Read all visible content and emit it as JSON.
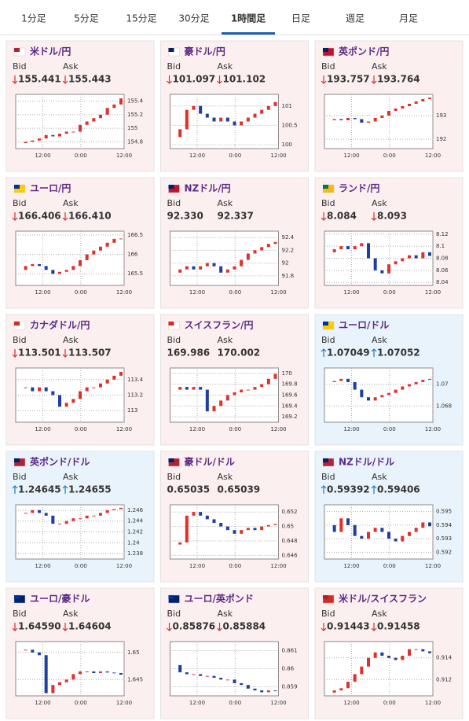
{
  "tabs": [
    "1分足",
    "5分足",
    "15分足",
    "30分足",
    "1時間足",
    "日足",
    "週足",
    "月足"
  ],
  "active_tab": 4,
  "labels": {
    "bid": "Bid",
    "ask": "Ask"
  },
  "cards": [
    {
      "title": "米ドル/円",
      "bid": "155.441",
      "ask": "155.443",
      "bid_dir": "down",
      "ask_dir": "down",
      "background": "#fcefef",
      "ylim": [
        154.7,
        155.5
      ],
      "yticks": [
        155.4,
        155.2,
        155,
        154.8
      ],
      "xticks": [
        "12:00",
        "0:00",
        "12:00"
      ],
      "closes": [
        154.78,
        154.8,
        154.82,
        154.85,
        154.9,
        154.88,
        154.92,
        154.95,
        154.95,
        155.05,
        155.1,
        155.15,
        155.2,
        155.3,
        155.35,
        155.44
      ]
    },
    {
      "title": "豪ドル/円",
      "bid": "101.097",
      "ask": "101.102",
      "bid_dir": "down",
      "ask_dir": "down",
      "background": "#fcefef",
      "ylim": [
        99.9,
        101.3
      ],
      "yticks": [
        101,
        100.5,
        100
      ],
      "xticks": [
        "12:00",
        "0:00",
        "12:00"
      ],
      "closes": [
        100.2,
        100.4,
        100.9,
        101.0,
        100.8,
        100.7,
        100.6,
        100.7,
        100.6,
        100.5,
        100.6,
        100.7,
        100.8,
        100.9,
        101.0,
        101.1
      ]
    },
    {
      "title": "英ポンド/円",
      "bid": "193.757",
      "ask": "193.764",
      "bid_dir": "down",
      "ask_dir": "down",
      "background": "#fcefef",
      "ylim": [
        191.6,
        193.9
      ],
      "yticks": [
        193,
        192
      ],
      "xticks": [
        "12:00",
        "0:00",
        "12:00"
      ],
      "closes": [
        192.8,
        192.85,
        192.8,
        192.9,
        192.85,
        192.7,
        192.75,
        192.9,
        193.0,
        193.2,
        193.3,
        193.4,
        193.5,
        193.6,
        193.7,
        193.76
      ]
    },
    {
      "title": "ユーロ/円",
      "bid": "166.406",
      "ask": "166.410",
      "bid_dir": "down",
      "ask_dir": "down",
      "background": "#fcefef",
      "ylim": [
        165.2,
        166.6
      ],
      "yticks": [
        166.5,
        166,
        165.5
      ],
      "xticks": [
        "12:00",
        "0:00",
        "12:00"
      ],
      "closes": [
        165.6,
        165.7,
        165.75,
        165.7,
        165.6,
        165.5,
        165.55,
        165.6,
        165.7,
        165.85,
        166.0,
        166.1,
        166.2,
        166.3,
        166.4,
        166.41
      ]
    },
    {
      "title": "NZドル/円",
      "bid": "92.330",
      "ask": "92.337",
      "background": "#fcefef",
      "ylim": [
        91.65,
        92.5
      ],
      "yticks": [
        92.4,
        92.2,
        92,
        91.8
      ],
      "xticks": [
        "12:00",
        "0:00",
        "12:00"
      ],
      "closes": [
        91.85,
        91.9,
        91.95,
        91.9,
        91.95,
        92.0,
        91.95,
        91.85,
        91.9,
        91.95,
        92.05,
        92.15,
        92.2,
        92.25,
        92.3,
        92.33
      ]
    },
    {
      "title": "ランド/円",
      "bid": "8.084",
      "ask": "8.093",
      "bid_dir": "down",
      "ask_dir": "down",
      "background": "#fcefef",
      "ylim": [
        8.035,
        8.125
      ],
      "yticks": [
        8.12,
        8.1,
        8.08,
        8.06,
        8.04
      ],
      "xticks": [
        "12:00",
        "0:00",
        "12:00"
      ],
      "closes": [
        8.09,
        8.095,
        8.1,
        8.095,
        8.1,
        8.105,
        8.08,
        8.06,
        8.055,
        8.07,
        8.075,
        8.08,
        8.085,
        8.08,
        8.09,
        8.084
      ]
    },
    {
      "title": "カナダドル/円",
      "bid": "113.501",
      "ask": "113.507",
      "bid_dir": "down",
      "ask_dir": "down",
      "background": "#fcefef",
      "ylim": [
        112.85,
        113.55
      ],
      "yticks": [
        113.4,
        113.2,
        113
      ],
      "xticks": [
        "12:00",
        "0:00",
        "12:00"
      ],
      "closes": [
        113.3,
        113.3,
        113.25,
        113.3,
        113.25,
        113.2,
        113.05,
        113.1,
        113.15,
        113.25,
        113.3,
        113.3,
        113.35,
        113.4,
        113.45,
        113.5
      ]
    },
    {
      "title": "スイスフラン/円",
      "bid": "169.986",
      "ask": "170.002",
      "background": "#fcefef",
      "ylim": [
        169.1,
        170.1
      ],
      "yticks": [
        170,
        169.8,
        169.6,
        169.4,
        169.2
      ],
      "xticks": [
        "12:00",
        "0:00",
        "12:00"
      ],
      "closes": [
        169.7,
        169.75,
        169.7,
        169.75,
        169.7,
        169.3,
        169.4,
        169.5,
        169.6,
        169.65,
        169.7,
        169.7,
        169.75,
        169.8,
        169.9,
        169.99
      ]
    },
    {
      "title": "ユーロ/ドル",
      "bid": "1.07049",
      "ask": "1.07052",
      "bid_dir": "up",
      "ask_dir": "up",
      "background": "#e9f3fb",
      "ylim": [
        1.0665,
        1.0715
      ],
      "yticks": [
        1.07,
        1.068
      ],
      "xticks": [
        "12:00",
        "0:00",
        "12:00"
      ],
      "closes": [
        1.0702,
        1.0703,
        1.0705,
        1.0702,
        1.0695,
        1.0688,
        1.0685,
        1.0688,
        1.069,
        1.0692,
        1.0695,
        1.0698,
        1.07,
        1.0702,
        1.0704,
        1.07049
      ]
    },
    {
      "title": "英ポンド/ドル",
      "bid": "1.24645",
      "ask": "1.24655",
      "bid_dir": "up",
      "ask_dir": "up",
      "background": "#e9f3fb",
      "ylim": [
        1.237,
        1.247
      ],
      "yticks": [
        1.246,
        1.244,
        1.242,
        1.24,
        1.238
      ],
      "xticks": [
        "12:00",
        "0:00",
        "12:00"
      ],
      "closes": [
        1.2455,
        1.2455,
        1.246,
        1.2455,
        1.245,
        1.2435,
        1.2435,
        1.244,
        1.2445,
        1.2445,
        1.245,
        1.245,
        1.2455,
        1.246,
        1.2462,
        1.24645
      ]
    },
    {
      "title": "豪ドル/ドル",
      "bid": "0.65035",
      "ask": "0.65039",
      "background": "#fcefef",
      "ylim": [
        0.6455,
        0.653
      ],
      "yticks": [
        0.652,
        0.65,
        0.648,
        0.646
      ],
      "xticks": [
        "12:00",
        "0:00",
        "12:00"
      ],
      "closes": [
        0.6475,
        0.6478,
        0.6515,
        0.652,
        0.6515,
        0.651,
        0.6505,
        0.65,
        0.6495,
        0.649,
        0.6495,
        0.6498,
        0.6495,
        0.65,
        0.6502,
        0.65035
      ]
    },
    {
      "title": "NZドル/ドル",
      "bid": "0.59392",
      "ask": "0.59406",
      "bid_dir": "up",
      "ask_dir": "up",
      "background": "#e9f3fb",
      "ylim": [
        0.5915,
        0.5955
      ],
      "yticks": [
        0.595,
        0.594,
        0.593,
        0.592
      ],
      "xticks": [
        "12:00",
        "0:00",
        "12:00"
      ],
      "closes": [
        0.594,
        0.5935,
        0.5945,
        0.594,
        0.5932,
        0.593,
        0.5935,
        0.5938,
        0.5935,
        0.593,
        0.5928,
        0.5932,
        0.5935,
        0.5938,
        0.5942,
        0.59392
      ]
    },
    {
      "title": "ユーロ/豪ドル",
      "bid": "1.64590",
      "ask": "1.64604",
      "bid_dir": "down",
      "ask_dir": "down",
      "background": "#fcefef",
      "ylim": [
        1.642,
        1.652
      ],
      "yticks": [
        1.65,
        1.645
      ],
      "xticks": [
        "12:00",
        "0:00",
        "12:00"
      ],
      "closes": [
        1.6505,
        1.6505,
        1.65,
        1.6495,
        1.6425,
        1.644,
        1.6445,
        1.645,
        1.646,
        1.6465,
        1.6465,
        1.6462,
        1.6465,
        1.6463,
        1.6462,
        1.6459
      ]
    },
    {
      "title": "ユーロ/英ポンド",
      "bid": "0.85876",
      "ask": "0.85884",
      "bid_dir": "down",
      "ask_dir": "down",
      "background": "#fcefef",
      "ylim": [
        0.8585,
        0.8615
      ],
      "yticks": [
        0.861,
        0.86,
        0.859
      ],
      "xticks": [
        "12:00",
        "0:00",
        "12:00"
      ],
      "closes": [
        0.8602,
        0.8598,
        0.8597,
        0.8597,
        0.8596,
        0.8596,
        0.8595,
        0.8594,
        0.8594,
        0.8592,
        0.8591,
        0.8589,
        0.8588,
        0.8587,
        0.8588,
        0.85876
      ]
    },
    {
      "title": "米ドル/スイスフラン",
      "bid": "0.91443",
      "ask": "0.91458",
      "bid_dir": "down",
      "ask_dir": "down",
      "background": "#fcefef",
      "ylim": [
        0.9105,
        0.9155
      ],
      "yticks": [
        0.914,
        0.912
      ],
      "xticks": [
        "12:00",
        "0:00",
        "12:00"
      ],
      "closes": [
        0.9108,
        0.911,
        0.9112,
        0.9118,
        0.9125,
        0.9132,
        0.914,
        0.9145,
        0.9142,
        0.914,
        0.9138,
        0.9142,
        0.9148,
        0.9148,
        0.9146,
        0.91443
      ]
    }
  ]
}
